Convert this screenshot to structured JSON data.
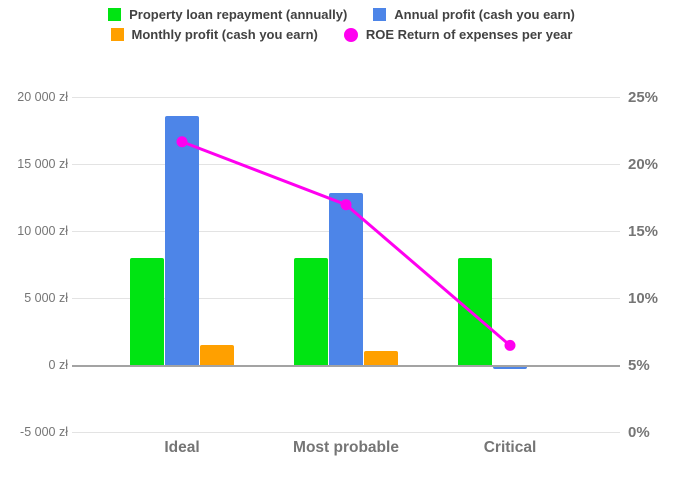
{
  "chart_data": {
    "type": "combo",
    "title": "",
    "categories": [
      "Ideal",
      "Most probable",
      "Critical"
    ],
    "series": [
      {
        "name": "Property loan repayment (annually)",
        "type": "bar",
        "axis": "left",
        "color": "#00e412",
        "values": [
          8000,
          8000,
          8000
        ]
      },
      {
        "name": "Annual profit (cash you earn)",
        "type": "bar",
        "axis": "left",
        "color": "#4d85e8",
        "values": [
          18600,
          12900,
          -200
        ]
      },
      {
        "name": "Monthly profit (cash you earn)",
        "type": "bar",
        "axis": "left",
        "color": "#ffa000",
        "values": [
          1550,
          1075,
          0
        ]
      },
      {
        "name": "ROE Return of expenses per year",
        "type": "line",
        "axis": "right",
        "color": "#ff00f0",
        "values": [
          21.7,
          17,
          6.5
        ]
      }
    ],
    "left_axis": {
      "unit": "zł",
      "range": [
        -5000,
        20000
      ],
      "ticks": [
        {
          "value": 20000,
          "label": "20 000 zł"
        },
        {
          "value": 15000,
          "label": "15 000 zł"
        },
        {
          "value": 10000,
          "label": "10 000 zł"
        },
        {
          "value": 5000,
          "label": "5 000 zł"
        },
        {
          "value": 0,
          "label": "0 zł"
        },
        {
          "value": -5000,
          "label": "-5 000 zł"
        }
      ]
    },
    "right_axis": {
      "unit": "%",
      "range": [
        0,
        25
      ],
      "ticks": [
        {
          "value": 25,
          "label": "25%"
        },
        {
          "value": 20,
          "label": "20%"
        },
        {
          "value": 15,
          "label": "15%"
        },
        {
          "value": 10,
          "label": "10%"
        },
        {
          "value": 5,
          "label": "5%"
        },
        {
          "value": 0,
          "label": "0%"
        }
      ]
    },
    "grid": true,
    "legend_position": "top"
  },
  "colors": {
    "background": "#ffffff",
    "gridline": "#e3e3e3",
    "zero_line": "#a3a3a3",
    "axis_text": "#757575",
    "legend_text": "#424242"
  }
}
